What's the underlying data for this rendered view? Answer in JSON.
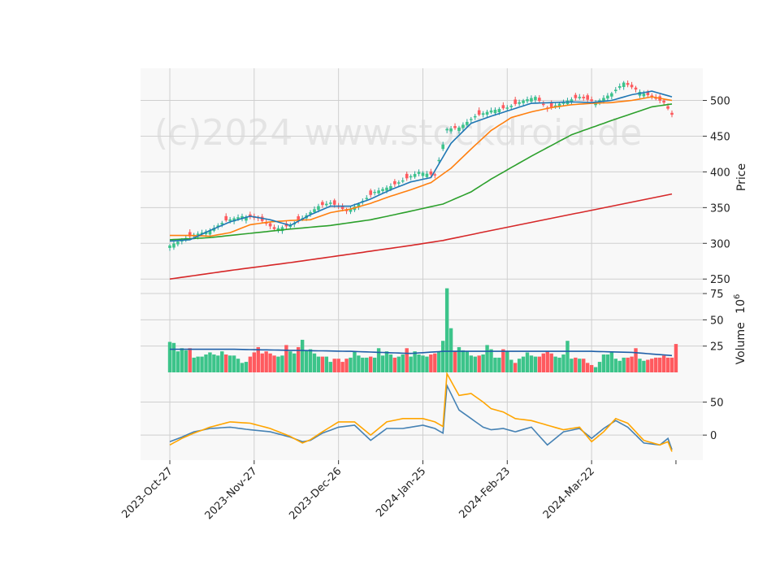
{
  "watermark": "(c)2024 www.stockdroid.de",
  "colors": {
    "up": "#26a69a",
    "up_fill": "#3cc48a",
    "down": "#ef5350",
    "down_fill": "#ff5a5f",
    "ma_short": "#1f77b4",
    "ma_mid": "#ff7f0e",
    "ma_long": "#2ca02c",
    "ma_200": "#d62728",
    "vol_ma": "#1f5fa8",
    "osc_a": "#4682b4",
    "osc_b": "#ffa500"
  },
  "chart_data": {
    "type": "candlestick",
    "x_tick_labels": [
      "2023-Oct-27",
      "2023-Nov-27",
      "2023-Dec-26",
      "2024-Jan-25",
      "2024-Feb-23",
      "2024-Mar-22"
    ],
    "x_tick_index": [
      0,
      21,
      42,
      63,
      84,
      105
    ],
    "panels": {
      "price": {
        "ylabel": "Price",
        "yticks": [
          250,
          300,
          350,
          400,
          450,
          500
        ],
        "ylim": [
          240,
          545
        ],
        "ohlc_anchor_close": [
          [
            0,
            297
          ],
          [
            3,
            305
          ],
          [
            6,
            312
          ],
          [
            10,
            318
          ],
          [
            14,
            332
          ],
          [
            18,
            338
          ],
          [
            22,
            335
          ],
          [
            26,
            320
          ],
          [
            30,
            325
          ],
          [
            33,
            335
          ],
          [
            37,
            352
          ],
          [
            40,
            357
          ],
          [
            44,
            345
          ],
          [
            47,
            355
          ],
          [
            51,
            372
          ],
          [
            55,
            380
          ],
          [
            58,
            388
          ],
          [
            62,
            400
          ],
          [
            66,
            395
          ],
          [
            69,
            460
          ],
          [
            72,
            462
          ],
          [
            76,
            478
          ],
          [
            80,
            486
          ],
          [
            84,
            490
          ],
          [
            88,
            500
          ],
          [
            91,
            505
          ],
          [
            94,
            488
          ],
          [
            98,
            498
          ],
          [
            102,
            505
          ],
          [
            106,
            497
          ],
          [
            110,
            510
          ],
          [
            113,
            525
          ],
          [
            117,
            512
          ],
          [
            120,
            505
          ],
          [
            123,
            497
          ],
          [
            125,
            480
          ]
        ],
        "ma_short_anchor": [
          [
            0,
            303
          ],
          [
            5,
            305
          ],
          [
            10,
            318
          ],
          [
            15,
            330
          ],
          [
            20,
            338
          ],
          [
            25,
            333
          ],
          [
            30,
            325
          ],
          [
            35,
            340
          ],
          [
            40,
            352
          ],
          [
            45,
            352
          ],
          [
            50,
            362
          ],
          [
            55,
            375
          ],
          [
            60,
            386
          ],
          [
            65,
            392
          ],
          [
            70,
            440
          ],
          [
            75,
            468
          ],
          [
            80,
            478
          ],
          [
            85,
            487
          ],
          [
            90,
            496
          ],
          [
            95,
            497
          ],
          [
            100,
            498
          ],
          [
            105,
            497
          ],
          [
            110,
            500
          ],
          [
            115,
            508
          ],
          [
            120,
            513
          ],
          [
            125,
            505
          ]
        ],
        "ma_mid_anchor": [
          [
            0,
            311
          ],
          [
            5,
            311
          ],
          [
            10,
            310
          ],
          [
            15,
            315
          ],
          [
            20,
            326
          ],
          [
            25,
            330
          ],
          [
            30,
            332
          ],
          [
            35,
            333
          ],
          [
            40,
            343
          ],
          [
            45,
            348
          ],
          [
            50,
            356
          ],
          [
            55,
            366
          ],
          [
            60,
            375
          ],
          [
            65,
            385
          ],
          [
            70,
            405
          ],
          [
            75,
            432
          ],
          [
            80,
            458
          ],
          [
            85,
            476
          ],
          [
            90,
            484
          ],
          [
            95,
            490
          ],
          [
            100,
            494
          ],
          [
            105,
            496
          ],
          [
            110,
            497
          ],
          [
            115,
            500
          ],
          [
            120,
            505
          ],
          [
            125,
            500
          ]
        ],
        "ma_long_anchor": [
          [
            0,
            305
          ],
          [
            10,
            308
          ],
          [
            20,
            314
          ],
          [
            30,
            320
          ],
          [
            40,
            325
          ],
          [
            50,
            333
          ],
          [
            60,
            345
          ],
          [
            68,
            355
          ],
          [
            75,
            372
          ],
          [
            80,
            390
          ],
          [
            90,
            422
          ],
          [
            100,
            452
          ],
          [
            110,
            472
          ],
          [
            120,
            491
          ],
          [
            125,
            495
          ]
        ],
        "ma_200_anchor": [
          [
            0,
            250
          ],
          [
            15,
            262
          ],
          [
            30,
            273
          ],
          [
            45,
            285
          ],
          [
            60,
            297
          ],
          [
            68,
            304
          ],
          [
            80,
            318
          ],
          [
            95,
            335
          ],
          [
            110,
            352
          ],
          [
            125,
            369
          ]
        ]
      },
      "volume": {
        "ylabel": "Volume",
        "ylabel_exponent": "10",
        "ylabel_power": "6",
        "yticks": [
          25,
          50,
          75
        ],
        "ylim": [
          0,
          82
        ],
        "values": [
          29,
          28,
          20,
          23,
          21,
          23,
          14,
          15,
          15,
          17,
          19,
          17,
          16,
          20,
          17,
          16,
          16,
          13,
          9,
          10,
          15,
          19,
          24,
          18,
          20,
          18,
          16,
          15,
          16,
          26,
          20,
          18,
          24,
          31,
          21,
          22,
          18,
          15,
          15,
          15,
          10,
          13,
          13,
          10,
          13,
          14,
          20,
          16,
          14,
          14,
          15,
          14,
          23,
          16,
          20,
          17,
          14,
          15,
          17,
          23,
          15,
          20,
          17,
          16,
          15,
          17,
          18,
          20,
          30,
          80,
          42,
          20,
          24,
          21,
          20,
          16,
          15,
          16,
          17,
          26,
          22,
          14,
          14,
          22,
          20,
          12,
          9,
          13,
          15,
          19,
          16,
          15,
          15,
          18,
          20,
          18,
          15,
          14,
          17,
          30,
          13,
          14,
          13,
          13,
          9,
          7,
          5,
          10,
          17,
          17,
          20,
          13,
          11,
          14,
          14,
          15,
          23,
          13,
          11,
          12,
          13,
          14,
          14,
          16,
          14,
          14,
          27
        ],
        "vol_ma_anchor": [
          [
            0,
            22
          ],
          [
            15,
            22
          ],
          [
            30,
            21
          ],
          [
            45,
            20
          ],
          [
            60,
            18
          ],
          [
            68,
            20
          ],
          [
            80,
            20
          ],
          [
            95,
            20
          ],
          [
            105,
            20
          ],
          [
            115,
            19
          ],
          [
            125,
            16
          ]
        ]
      },
      "oscillator": {
        "yticks": [
          0,
          50
        ],
        "ylim": [
          -38,
          95
        ],
        "series_a_anchor": [
          [
            0,
            -10
          ],
          [
            3,
            -3
          ],
          [
            6,
            5
          ],
          [
            10,
            10
          ],
          [
            15,
            12
          ],
          [
            20,
            8
          ],
          [
            25,
            5
          ],
          [
            30,
            -3
          ],
          [
            33,
            -10
          ],
          [
            35,
            -8
          ],
          [
            38,
            3
          ],
          [
            42,
            12
          ],
          [
            46,
            15
          ],
          [
            50,
            -8
          ],
          [
            54,
            10
          ],
          [
            58,
            10
          ],
          [
            63,
            15
          ],
          [
            66,
            10
          ],
          [
            68,
            3
          ],
          [
            69,
            75
          ],
          [
            72,
            38
          ],
          [
            75,
            25
          ],
          [
            78,
            12
          ],
          [
            80,
            8
          ],
          [
            83,
            10
          ],
          [
            86,
            5
          ],
          [
            90,
            12
          ],
          [
            94,
            -15
          ],
          [
            98,
            5
          ],
          [
            102,
            10
          ],
          [
            105,
            -5
          ],
          [
            108,
            10
          ],
          [
            111,
            22
          ],
          [
            114,
            12
          ],
          [
            118,
            -12
          ],
          [
            122,
            -15
          ],
          [
            124,
            -5
          ],
          [
            125,
            -22
          ]
        ],
        "series_b_anchor": [
          [
            0,
            -15
          ],
          [
            3,
            -5
          ],
          [
            6,
            3
          ],
          [
            10,
            12
          ],
          [
            15,
            20
          ],
          [
            20,
            18
          ],
          [
            25,
            10
          ],
          [
            30,
            -2
          ],
          [
            33,
            -12
          ],
          [
            35,
            -7
          ],
          [
            38,
            5
          ],
          [
            42,
            20
          ],
          [
            46,
            20
          ],
          [
            50,
            0
          ],
          [
            54,
            20
          ],
          [
            58,
            25
          ],
          [
            63,
            25
          ],
          [
            66,
            20
          ],
          [
            68,
            13
          ],
          [
            69,
            93
          ],
          [
            72,
            60
          ],
          [
            75,
            63
          ],
          [
            78,
            50
          ],
          [
            80,
            40
          ],
          [
            83,
            35
          ],
          [
            86,
            25
          ],
          [
            90,
            22
          ],
          [
            94,
            15
          ],
          [
            98,
            8
          ],
          [
            102,
            12
          ],
          [
            105,
            -10
          ],
          [
            108,
            5
          ],
          [
            111,
            25
          ],
          [
            114,
            18
          ],
          [
            118,
            -8
          ],
          [
            122,
            -15
          ],
          [
            124,
            -10
          ],
          [
            125,
            -25
          ]
        ]
      }
    }
  }
}
